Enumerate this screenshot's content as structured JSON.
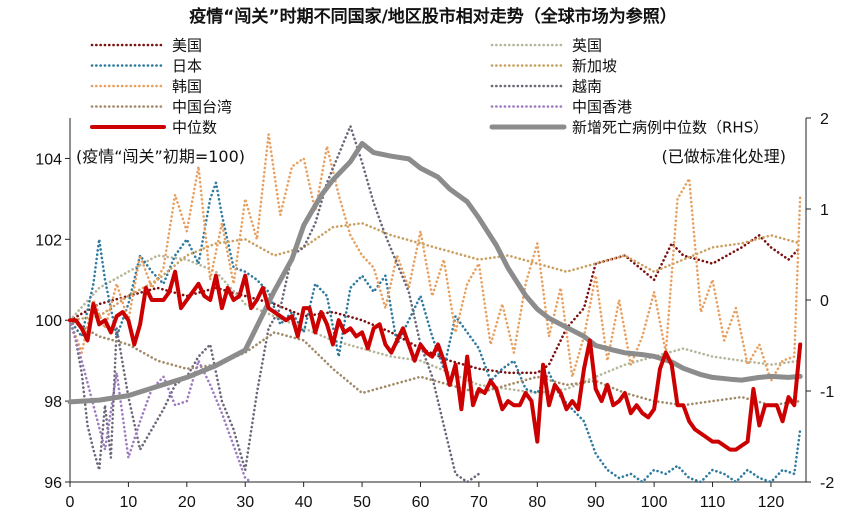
{
  "chart_data": {
    "type": "line",
    "title": "疫情“闯关”时期不同国家/地区股市相对走势（全球市场为参照）",
    "left_note": "(疫情“闯关”初期=100)",
    "right_note": "(已做标准化处理)",
    "x_ticks": [
      "0",
      "10",
      "20",
      "30",
      "40",
      "50",
      "60",
      "70",
      "80",
      "90",
      "100",
      "110",
      "120"
    ],
    "y_left_ticks": [
      "96",
      "98",
      "100",
      "102",
      "104"
    ],
    "y_right_ticks": [
      "-2",
      "-1",
      "0",
      "1",
      "2"
    ],
    "xlim": [
      0,
      126
    ],
    "ylim_left": [
      96,
      105
    ],
    "ylim_right": [
      -2,
      2
    ],
    "series": [
      {
        "name": "美国",
        "color": "#7b1010",
        "style": "dotted",
        "axis": "left",
        "x": [
          0,
          5,
          10,
          15,
          20,
          25,
          30,
          35,
          40,
          45,
          50,
          55,
          60,
          65,
          70,
          75,
          80,
          82,
          85,
          88,
          90,
          95,
          100,
          103,
          105,
          110,
          115,
          118,
          120,
          123,
          125
        ],
        "y": [
          100,
          100.4,
          100.6,
          100.8,
          100.6,
          100.8,
          100.6,
          100.4,
          100.1,
          100.2,
          100.0,
          99.7,
          99.3,
          99.0,
          98.8,
          98.7,
          98.7,
          98.9,
          99.8,
          100.3,
          101.4,
          101.6,
          101.0,
          101.9,
          101.6,
          101.4,
          101.8,
          102.1,
          101.8,
          101.5,
          101.8
        ]
      },
      {
        "name": "英国",
        "color": "#b5b59a",
        "style": "dotted",
        "axis": "left",
        "x": [
          0,
          5,
          10,
          15,
          20,
          25,
          30,
          35,
          40,
          45,
          50,
          55,
          60,
          65,
          70,
          75,
          80,
          85,
          90,
          95,
          100,
          105,
          110,
          115,
          120,
          125
        ],
        "y": [
          100,
          100.8,
          101.2,
          101.6,
          101.5,
          101.2,
          100.4,
          100.1,
          99.8,
          99.5,
          99.3,
          99.1,
          99.0,
          98.7,
          98.4,
          98.3,
          98.2,
          98.3,
          98.6,
          98.9,
          99.1,
          99.3,
          99.1,
          99.0,
          98.9,
          99.0
        ]
      },
      {
        "name": "日本",
        "color": "#2f7ba0",
        "style": "dotted",
        "axis": "left",
        "x": [
          0,
          2,
          4,
          5,
          6,
          8,
          10,
          12,
          14,
          16,
          18,
          20,
          22,
          24,
          25,
          26,
          28,
          30,
          32,
          34,
          36,
          38,
          40,
          42,
          44,
          46,
          48,
          50,
          52,
          54,
          56,
          58,
          60,
          62,
          64,
          66,
          68,
          70,
          72,
          74,
          76,
          78,
          80,
          82,
          84,
          86,
          88,
          90,
          92,
          94,
          96,
          98,
          100,
          102,
          104,
          106,
          108,
          110,
          112,
          114,
          116,
          118,
          120,
          122,
          124,
          125
        ],
        "y": [
          100,
          99.6,
          100.9,
          102.0,
          101.0,
          99.6,
          100.4,
          101.6,
          101.2,
          100.9,
          101.6,
          102.0,
          101.4,
          103.0,
          103.4,
          102.6,
          101.3,
          101.2,
          101.0,
          100.7,
          99.9,
          100.2,
          99.7,
          100.9,
          100.6,
          99.1,
          100.8,
          101.1,
          100.7,
          101.1,
          99.4,
          100.0,
          100.6,
          99.6,
          98.8,
          100.1,
          99.7,
          99.3,
          98.5,
          98.8,
          99.0,
          98.3,
          98.2,
          98.7,
          98.1,
          97.8,
          97.5,
          96.7,
          96.3,
          96.1,
          96.2,
          96.0,
          96.3,
          96.2,
          96.4,
          96.1,
          96.0,
          96.3,
          96.2,
          96.0,
          96.3,
          96.1,
          96.0,
          96.3,
          96.2,
          97.3
        ]
      },
      {
        "name": "新加坡",
        "color": "#c9a060",
        "style": "dotted",
        "axis": "left",
        "x": [
          0,
          5,
          10,
          15,
          20,
          25,
          30,
          35,
          40,
          45,
          50,
          55,
          60,
          65,
          70,
          75,
          80,
          85,
          90,
          95,
          100,
          105,
          110,
          115,
          120,
          125
        ],
        "y": [
          100,
          100.1,
          100.6,
          101.0,
          101.6,
          101.9,
          102.0,
          101.6,
          101.8,
          102.3,
          102.4,
          102.1,
          101.9,
          101.7,
          101.5,
          101.6,
          101.4,
          101.2,
          101.4,
          101.6,
          101.2,
          101.5,
          101.8,
          101.9,
          102.1,
          101.9
        ]
      },
      {
        "name": "韩国",
        "color": "#e8a060",
        "style": "dotted",
        "axis": "left",
        "x": [
          0,
          2,
          4,
          6,
          8,
          10,
          12,
          14,
          16,
          18,
          20,
          22,
          24,
          26,
          28,
          30,
          32,
          34,
          36,
          38,
          40,
          42,
          44,
          46,
          48,
          50,
          52,
          54,
          56,
          58,
          60,
          62,
          64,
          66,
          68,
          70,
          72,
          74,
          76,
          78,
          80,
          82,
          84,
          86,
          88,
          90,
          92,
          94,
          96,
          98,
          100,
          102,
          104,
          106,
          108,
          110,
          112,
          114,
          116,
          118,
          120,
          122,
          124,
          125
        ],
        "y": [
          100,
          99.2,
          100.5,
          99.8,
          100.9,
          100.0,
          101.6,
          100.8,
          101.3,
          103.1,
          102.2,
          103.8,
          101.0,
          102.4,
          100.9,
          103.0,
          102.0,
          104.6,
          102.6,
          103.8,
          104.0,
          102.7,
          104.3,
          103.1,
          102.1,
          101.6,
          101.3,
          100.3,
          101.6,
          100.8,
          102.2,
          100.6,
          101.5,
          99.7,
          100.9,
          101.4,
          99.4,
          100.4,
          99.2,
          100.9,
          101.9,
          99.6,
          100.8,
          98.6,
          99.6,
          101.1,
          99.0,
          100.5,
          98.9,
          99.6,
          100.7,
          99.2,
          103.0,
          103.5,
          100.2,
          101.0,
          99.5,
          100.3,
          98.9,
          99.4,
          98.5,
          99.0,
          99.1,
          103.1
        ]
      },
      {
        "name": "越南",
        "color": "#6a6878",
        "style": "dotted",
        "axis": "left",
        "x": [
          0,
          1,
          2,
          3,
          4,
          5,
          6,
          7,
          8,
          10,
          12,
          14,
          16,
          18,
          20,
          22,
          24,
          26,
          28,
          30,
          32,
          34,
          36,
          38,
          40,
          42,
          44,
          46,
          48,
          50,
          52,
          54,
          56,
          58,
          60,
          62,
          64,
          66,
          68,
          70
        ],
        "y": [
          100,
          99.5,
          98.7,
          97.4,
          96.8,
          96.3,
          97.9,
          96.6,
          99.8,
          98.1,
          96.8,
          97.3,
          97.8,
          98.4,
          98.6,
          99.1,
          99.4,
          98.0,
          97.3,
          96.3,
          98.2,
          99.8,
          100.3,
          101.6,
          101.8,
          102.4,
          103.4,
          104.1,
          104.8,
          103.9,
          102.9,
          102.1,
          101.4,
          100.7,
          99.4,
          98.6,
          97.4,
          96.2,
          96.0,
          96.2
        ]
      },
      {
        "name": "中国台湾",
        "color": "#a08a68",
        "style": "dotted",
        "axis": "left",
        "x": [
          0,
          5,
          10,
          15,
          20,
          25,
          30,
          35,
          40,
          45,
          50,
          55,
          60,
          65,
          70,
          75,
          80,
          85,
          90,
          95,
          100,
          105,
          110,
          115,
          120,
          125
        ],
        "y": [
          100,
          99.6,
          99.4,
          99.0,
          98.8,
          98.9,
          99.2,
          99.7,
          99.5,
          98.8,
          98.2,
          98.4,
          98.6,
          98.4,
          98.2,
          98.4,
          98.6,
          98.4,
          98.5,
          98.2,
          98.0,
          97.9,
          98.0,
          98.1,
          97.9,
          98.0
        ]
      },
      {
        "name": "中国香港",
        "color": "#9d7bc0",
        "style": "dotted",
        "axis": "left",
        "x": [
          0,
          2,
          4,
          6,
          8,
          10,
          12,
          14,
          16,
          18,
          20,
          22,
          24,
          26,
          28,
          30,
          31
        ],
        "y": [
          100,
          99.0,
          97.9,
          96.8,
          98.7,
          96.6,
          97.5,
          98.3,
          98.6,
          97.9,
          98.0,
          99.0,
          98.4,
          97.7,
          96.9,
          96.1,
          96.0
        ]
      },
      {
        "name": "中位数",
        "color": "#cc0000",
        "style": "solid",
        "width": 4,
        "axis": "left",
        "x": [
          0,
          1,
          2,
          3,
          4,
          5,
          6,
          7,
          8,
          9,
          10,
          11,
          12,
          13,
          14,
          15,
          16,
          17,
          18,
          19,
          20,
          21,
          22,
          23,
          24,
          25,
          26,
          27,
          28,
          29,
          30,
          31,
          32,
          33,
          34,
          35,
          36,
          37,
          38,
          39,
          40,
          41,
          42,
          43,
          44,
          45,
          46,
          47,
          48,
          49,
          50,
          51,
          52,
          53,
          54,
          55,
          56,
          57,
          58,
          59,
          60,
          61,
          62,
          63,
          64,
          65,
          66,
          67,
          68,
          69,
          70,
          71,
          72,
          73,
          74,
          75,
          76,
          77,
          78,
          79,
          80,
          81,
          82,
          83,
          84,
          85,
          86,
          87,
          88,
          89,
          90,
          91,
          92,
          93,
          94,
          95,
          96,
          97,
          98,
          99,
          100,
          101,
          102,
          103,
          104,
          105,
          106,
          107,
          108,
          109,
          110,
          111,
          112,
          113,
          114,
          115,
          116,
          117,
          118,
          119,
          120,
          121,
          122,
          123,
          124,
          125
        ],
        "y": [
          100,
          100,
          99.8,
          99.5,
          100.4,
          99.9,
          100.0,
          99.7,
          100.1,
          100.2,
          100.0,
          99.4,
          99.9,
          100.8,
          100.5,
          100.5,
          100.5,
          100.7,
          101.2,
          100.3,
          100.5,
          100.7,
          100.9,
          100.6,
          100.5,
          101.1,
          100.3,
          100.8,
          100.5,
          100.6,
          101.1,
          100.3,
          100.5,
          100.8,
          100.3,
          100.2,
          100.1,
          100.0,
          100.1,
          99.6,
          100.3,
          100.3,
          99.7,
          100.2,
          99.9,
          99.4,
          100.0,
          99.7,
          99.8,
          99.6,
          99.7,
          99.3,
          99.8,
          99.9,
          99.4,
          99.2,
          99.5,
          99.8,
          99.4,
          99.0,
          99.4,
          99.2,
          99.1,
          99.4,
          99.0,
          98.4,
          98.9,
          97.8,
          99.1,
          97.9,
          98.3,
          98.2,
          98.5,
          98.3,
          97.8,
          98.0,
          97.9,
          97.9,
          98.2,
          98.0,
          97.0,
          98.9,
          97.9,
          98.4,
          98.2,
          97.8,
          98.0,
          97.8,
          98.8,
          99.5,
          98.3,
          98.0,
          98.4,
          97.9,
          98.0,
          98.2,
          97.7,
          97.9,
          97.7,
          97.6,
          97.8,
          98.8,
          99.2,
          98.9,
          97.9,
          97.9,
          97.5,
          97.3,
          97.2,
          97.1,
          97.0,
          97.0,
          96.9,
          96.8,
          96.8,
          96.9,
          97.0,
          98.3,
          97.4,
          97.9,
          97.9,
          97.9,
          97.5,
          98.1,
          97.9,
          99.4
        ]
      },
      {
        "name": "新增死亡病例中位数（RHS）",
        "color": "#8c8c8c",
        "style": "solid",
        "width": 5,
        "axis": "right",
        "x": [
          0,
          5,
          10,
          15,
          20,
          25,
          30,
          35,
          38,
          40,
          43,
          45,
          48,
          50,
          52,
          55,
          58,
          60,
          63,
          65,
          68,
          70,
          73,
          75,
          78,
          80,
          82,
          85,
          88,
          90,
          93,
          95,
          98,
          100,
          103,
          105,
          108,
          110,
          113,
          115,
          118,
          120,
          123,
          125
        ],
        "y": [
          -1.12,
          -1.1,
          -1.05,
          -0.95,
          -0.85,
          -0.72,
          -0.55,
          0.1,
          0.45,
          0.82,
          1.15,
          1.32,
          1.52,
          1.72,
          1.62,
          1.58,
          1.55,
          1.45,
          1.35,
          1.22,
          1.08,
          0.9,
          0.6,
          0.35,
          0.05,
          -0.1,
          -0.2,
          -0.3,
          -0.4,
          -0.5,
          -0.55,
          -0.58,
          -0.6,
          -0.62,
          -0.68,
          -0.75,
          -0.82,
          -0.85,
          -0.87,
          -0.88,
          -0.85,
          -0.84,
          -0.85,
          -0.84
        ]
      }
    ]
  }
}
